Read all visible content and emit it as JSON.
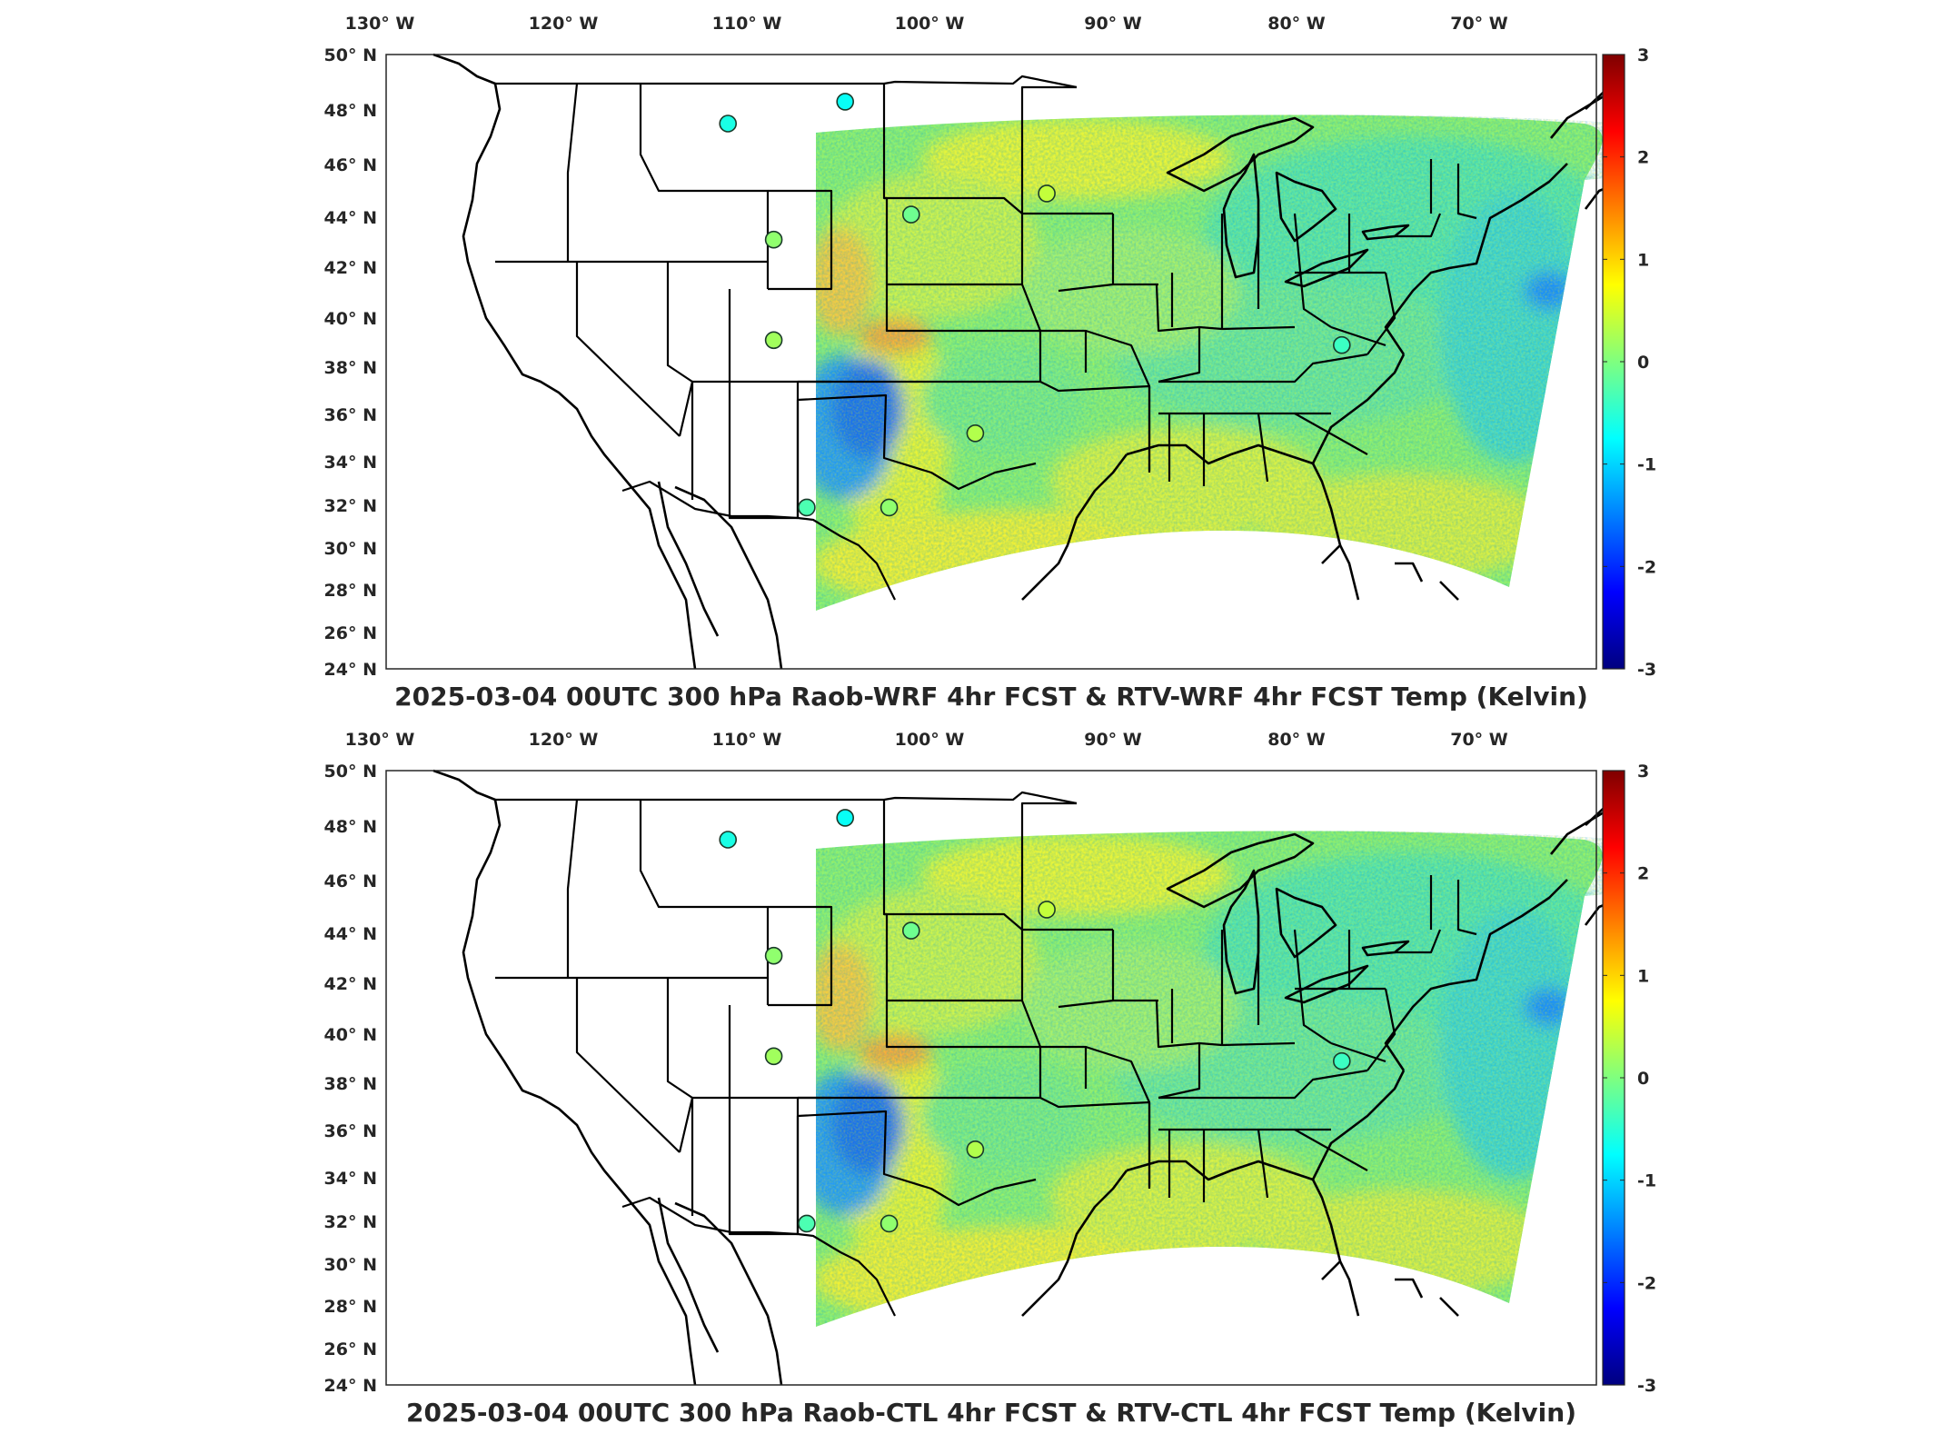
{
  "panels": [
    {
      "id": "top",
      "title": "2025-03-04 00UTC 300 hPa Raob-WRF 4hr FCST & RTV-WRF 4hr FCST Temp (Kelvin)",
      "stations": [
        {
          "lon": -111.0,
          "lat": 47.5,
          "value": -0.6
        },
        {
          "lon": -104.6,
          "lat": 48.3,
          "value": -0.7
        },
        {
          "lon": -108.5,
          "lat": 43.1,
          "value": 0.1
        },
        {
          "lon": -101.0,
          "lat": 44.1,
          "value": -0.1
        },
        {
          "lon": -93.6,
          "lat": 44.9,
          "value": 0.4
        },
        {
          "lon": -108.5,
          "lat": 39.1,
          "value": 0.2
        },
        {
          "lon": -97.5,
          "lat": 35.2,
          "value": 0.3
        },
        {
          "lon": -106.7,
          "lat": 31.9,
          "value": -0.3
        },
        {
          "lon": -102.2,
          "lat": 31.9,
          "value": 0.1
        },
        {
          "lon": -77.5,
          "lat": 38.9,
          "value": -0.4
        }
      ]
    },
    {
      "id": "bottom",
      "title": "2025-03-04 00UTC 300 hPa Raob-CTL 4hr FCST & RTV-CTL 4hr FCST Temp (Kelvin)",
      "stations": [
        {
          "lon": -111.0,
          "lat": 47.5,
          "value": -0.6
        },
        {
          "lon": -104.6,
          "lat": 48.3,
          "value": -0.7
        },
        {
          "lon": -108.5,
          "lat": 43.1,
          "value": 0.1
        },
        {
          "lon": -101.0,
          "lat": 44.1,
          "value": -0.1
        },
        {
          "lon": -93.6,
          "lat": 44.9,
          "value": 0.4
        },
        {
          "lon": -108.5,
          "lat": 39.1,
          "value": 0.2
        },
        {
          "lon": -97.5,
          "lat": 35.2,
          "value": 0.3
        },
        {
          "lon": -106.7,
          "lat": 31.9,
          "value": -0.3
        },
        {
          "lon": -102.2,
          "lat": 31.9,
          "value": 0.1
        },
        {
          "lon": -77.5,
          "lat": 38.9,
          "value": -0.4
        }
      ]
    }
  ],
  "lon_labels": [
    "130° W",
    "120° W",
    "110° W",
    "100° W",
    "90° W",
    "80° W",
    "70° W"
  ],
  "lat_labels": [
    "50° N",
    "48° N",
    "46° N",
    "44° N",
    "42° N",
    "40° N",
    "38° N",
    "36° N",
    "34° N",
    "32° N",
    "30° N",
    "28° N",
    "26° N",
    "24° N"
  ],
  "colorbar": {
    "range": [
      -3,
      3
    ],
    "tick_labels": [
      "3",
      "2",
      "1",
      "0",
      "-1",
      "-2",
      "-3"
    ],
    "colormap": "jet",
    "colors": [
      "#00007f",
      "#0000ff",
      "#007fff",
      "#00ffff",
      "#7fff7f",
      "#ffff00",
      "#ff7f00",
      "#ff0000",
      "#7f0000"
    ]
  }
}
